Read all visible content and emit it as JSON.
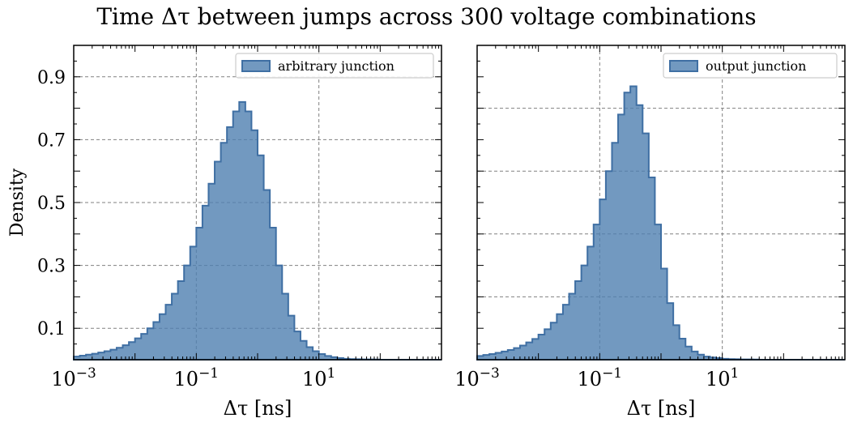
{
  "figure": {
    "suptitle": "Time Δτ between jumps across 300 voltage combinations"
  },
  "style": {
    "fill_color": "#4f7fb0",
    "fill_opacity": 0.8,
    "edge_color": "#3f6fa3",
    "grid_color": "#808080",
    "background": "#ffffff"
  },
  "chart_data": [
    {
      "type": "area",
      "subtype": "step-histogram",
      "panel": "left",
      "xlabel": "Δτ [ns]",
      "ylabel": "Density",
      "x_scale": "log",
      "xlim": [
        0.001,
        1000
      ],
      "ylim": [
        0,
        1.0
      ],
      "xticks": [
        "10^-3",
        "10^-1",
        "10^1"
      ],
      "yticks": [
        0.1,
        0.3,
        0.5,
        0.7,
        0.9
      ],
      "grid": true,
      "legend": {
        "location": "top-right",
        "label": "arbitrary junction"
      },
      "bins_log10": [
        -3.0,
        -2.9,
        -2.8,
        -2.7,
        -2.6,
        -2.5,
        -2.4,
        -2.3,
        -2.2,
        -2.1,
        -2.0,
        -1.9,
        -1.8,
        -1.7,
        -1.6,
        -1.5,
        -1.4,
        -1.3,
        -1.2,
        -1.1,
        -1.0,
        -0.9,
        -0.8,
        -0.7,
        -0.6,
        -0.5,
        -0.4,
        -0.3,
        -0.2,
        -0.1,
        0.0,
        0.1,
        0.2,
        0.3,
        0.4,
        0.5,
        0.6,
        0.7,
        0.8,
        0.9,
        1.0,
        1.1,
        1.2,
        1.3,
        1.4,
        1.5,
        1.6,
        1.7,
        1.8,
        1.9,
        2.0,
        2.1,
        2.2,
        2.3,
        2.4,
        2.5,
        2.6,
        2.7,
        2.8,
        2.9,
        3.0
      ],
      "density": [
        0.01,
        0.013,
        0.016,
        0.019,
        0.023,
        0.027,
        0.032,
        0.038,
        0.046,
        0.056,
        0.068,
        0.082,
        0.1,
        0.12,
        0.145,
        0.175,
        0.21,
        0.25,
        0.3,
        0.36,
        0.42,
        0.49,
        0.56,
        0.63,
        0.69,
        0.74,
        0.79,
        0.82,
        0.79,
        0.73,
        0.65,
        0.54,
        0.42,
        0.3,
        0.21,
        0.14,
        0.09,
        0.06,
        0.04,
        0.027,
        0.018,
        0.012,
        0.008,
        0.005,
        0.003,
        0.002,
        0.0015,
        0.001,
        0.001,
        0.0005,
        0,
        0,
        0,
        0,
        0,
        0,
        0,
        0,
        0,
        0
      ]
    },
    {
      "type": "area",
      "subtype": "step-histogram",
      "panel": "right",
      "xlabel": "Δτ [ns]",
      "ylabel": "",
      "x_scale": "log",
      "xlim": [
        0.001,
        1000
      ],
      "ylim": [
        0,
        1.0
      ],
      "xticks": [
        "10^-3",
        "10^-1",
        "10^1"
      ],
      "yticks": [],
      "grid": true,
      "legend": {
        "location": "top-right",
        "label": "output junction"
      },
      "bins_log10": [
        -3.0,
        -2.9,
        -2.8,
        -2.7,
        -2.6,
        -2.5,
        -2.4,
        -2.3,
        -2.2,
        -2.1,
        -2.0,
        -1.9,
        -1.8,
        -1.7,
        -1.6,
        -1.5,
        -1.4,
        -1.3,
        -1.2,
        -1.1,
        -1.0,
        -0.9,
        -0.8,
        -0.7,
        -0.6,
        -0.5,
        -0.4,
        -0.3,
        -0.2,
        -0.1,
        0.0,
        0.1,
        0.2,
        0.3,
        0.4,
        0.5,
        0.6,
        0.7,
        0.8,
        0.9,
        1.0,
        1.1,
        1.2,
        1.3,
        1.4,
        1.5,
        1.6,
        1.7,
        1.8,
        1.9,
        2.0,
        2.1,
        2.2,
        2.3,
        2.4,
        2.5,
        2.6,
        2.7,
        2.8,
        2.9,
        3.0
      ],
      "density": [
        0.012,
        0.015,
        0.018,
        0.022,
        0.026,
        0.031,
        0.037,
        0.045,
        0.055,
        0.066,
        0.08,
        0.097,
        0.118,
        0.145,
        0.175,
        0.21,
        0.25,
        0.3,
        0.36,
        0.43,
        0.51,
        0.6,
        0.69,
        0.78,
        0.85,
        0.87,
        0.81,
        0.72,
        0.58,
        0.43,
        0.29,
        0.18,
        0.11,
        0.067,
        0.042,
        0.026,
        0.016,
        0.01,
        0.007,
        0.005,
        0.003,
        0.002,
        0.0015,
        0.001,
        0.001,
        0.0005,
        0,
        0,
        0,
        0,
        0,
        0,
        0,
        0,
        0,
        0,
        0,
        0,
        0,
        0
      ]
    }
  ]
}
